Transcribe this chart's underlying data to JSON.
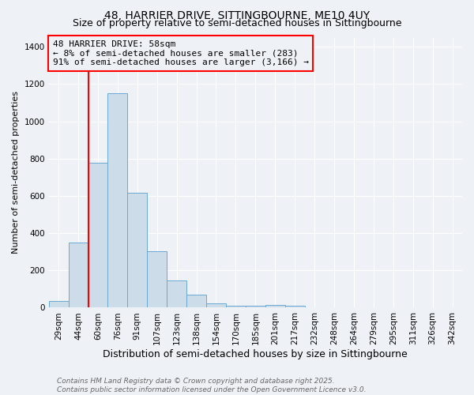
{
  "title_line1": "48, HARRIER DRIVE, SITTINGBOURNE, ME10 4UY",
  "title_line2": "Size of property relative to semi-detached houses in Sittingbourne",
  "xlabel": "Distribution of semi-detached houses by size in Sittingbourne",
  "ylabel": "Number of semi-detached properties",
  "categories": [
    "29sqm",
    "44sqm",
    "60sqm",
    "76sqm",
    "91sqm",
    "107sqm",
    "123sqm",
    "138sqm",
    "154sqm",
    "170sqm",
    "185sqm",
    "201sqm",
    "217sqm",
    "232sqm",
    "248sqm",
    "264sqm",
    "279sqm",
    "295sqm",
    "311sqm",
    "326sqm",
    "342sqm"
  ],
  "values": [
    35,
    350,
    780,
    1150,
    615,
    305,
    145,
    70,
    25,
    10,
    12,
    15,
    10,
    0,
    0,
    0,
    0,
    0,
    0,
    0,
    0
  ],
  "bar_color": "#ccdce8",
  "bar_edge_color": "#6aaad4",
  "redline_index": 1.5,
  "annotation_line1": "48 HARRIER DRIVE: 58sqm",
  "annotation_line2": "← 8% of semi-detached houses are smaller (283)",
  "annotation_line3": "91% of semi-detached houses are larger (3,166) →",
  "ylim": [
    0,
    1450
  ],
  "yticks": [
    0,
    200,
    400,
    600,
    800,
    1000,
    1200,
    1400
  ],
  "footnote_line1": "Contains HM Land Registry data © Crown copyright and database right 2025.",
  "footnote_line2": "Contains public sector information licensed under the Open Government Licence v3.0.",
  "bg_color": "#eef2f7",
  "grid_color": "#ffffff",
  "title1_fontsize": 10,
  "title2_fontsize": 9,
  "xlabel_fontsize": 9,
  "ylabel_fontsize": 8,
  "tick_fontsize": 7.5,
  "annot_fontsize": 8,
  "footnote_fontsize": 6.5
}
